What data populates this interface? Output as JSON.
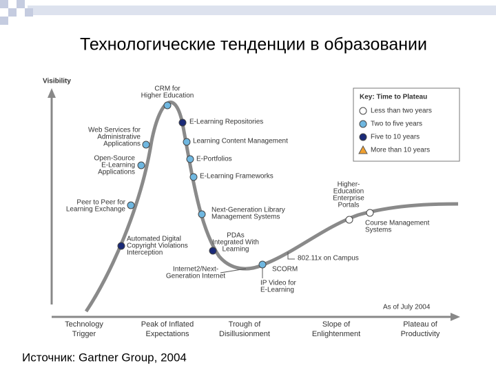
{
  "header": {
    "title": "Технологические тенденции в образовании"
  },
  "diagram": {
    "y_axis_label": "Visibility",
    "note": "As of July 2004",
    "key": {
      "title": "Key: Time to Plateau",
      "items": [
        {
          "label": "Less than two years",
          "color": "#ffffff",
          "shape": "circle"
        },
        {
          "label": "Two to five years",
          "color": "#6fb7e0",
          "shape": "circle"
        },
        {
          "label": "Five to 10 years",
          "color": "#1a2a78",
          "shape": "circle"
        },
        {
          "label": "More than 10 years",
          "color": "#f0a030",
          "shape": "triangle"
        }
      ]
    },
    "nodes": [
      {
        "label": [
          "CRM for",
          "Higher Education"
        ],
        "key": 1
      },
      {
        "label": [
          "E-Learning Repositories"
        ],
        "key": 2
      },
      {
        "label": [
          "Web Services for",
          "Administrative",
          "Applications"
        ],
        "key": 1
      },
      {
        "label": [
          "Learning Content Management"
        ],
        "key": 1
      },
      {
        "label": [
          "Open-Source",
          "E-Learning",
          "Applications"
        ],
        "key": 1
      },
      {
        "label": [
          "E-Portfolios"
        ],
        "key": 1
      },
      {
        "label": [
          "E-Learning Frameworks"
        ],
        "key": 1
      },
      {
        "label": [
          "Peer to Peer for",
          "Learning Exchange"
        ],
        "key": 1
      },
      {
        "label": [
          "Next-Generation Library",
          "Management Systems"
        ],
        "key": 1
      },
      {
        "label": [
          "Automated Digital",
          "Copyright Violations",
          "Interception"
        ],
        "key": 2
      },
      {
        "label": [
          "PDAs",
          "Integrated With",
          "Learning"
        ],
        "key": 2
      },
      {
        "label": [
          "Internet2/Next-",
          "Generation Internet"
        ],
        "key": null
      },
      {
        "label": [
          "SCORM"
        ],
        "key": 1
      },
      {
        "label": [
          "802.11x on Campus"
        ],
        "key": null
      },
      {
        "label": [
          "IP Video for",
          "E-Learning"
        ],
        "key": null
      },
      {
        "label": [
          "Higher-",
          "Education",
          "Enterprise",
          "Portals"
        ],
        "key": 0
      },
      {
        "label": [
          "Course Management",
          "Systems"
        ],
        "key": 0
      }
    ],
    "phases": [
      [
        "Technology",
        "Trigger"
      ],
      [
        "Peak of Inflated",
        "Expectations"
      ],
      [
        "Trough of",
        "Disillusionment"
      ],
      [
        "Slope of",
        "Enlightenment"
      ],
      [
        "Plateau of",
        "Productivity"
      ]
    ]
  },
  "footer": {
    "source": "Источник: Gartner Group, 2004"
  }
}
